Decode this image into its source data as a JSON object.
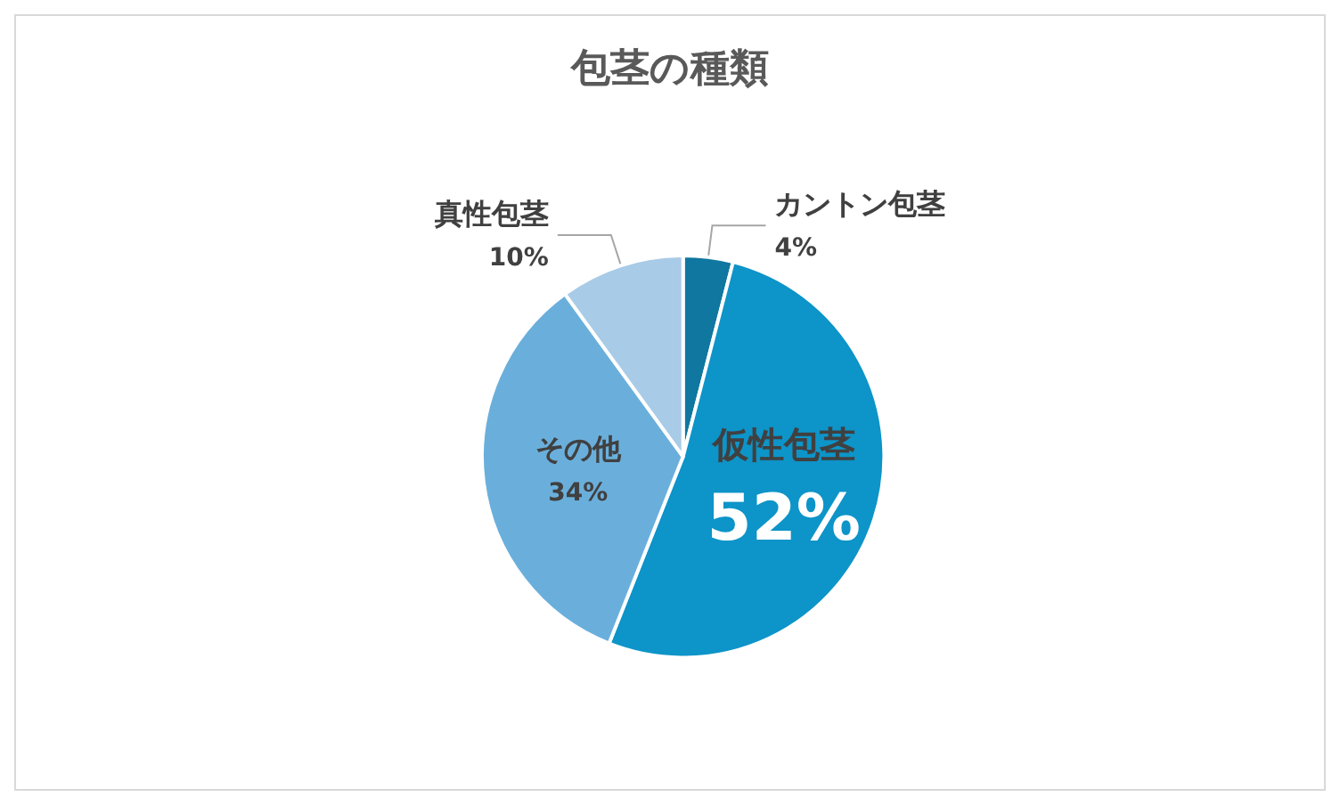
{
  "chart_data": {
    "type": "pie",
    "title": "包茎の種類",
    "categories": [
      "カントン包茎",
      "仮性包茎",
      "その他",
      "真性包茎"
    ],
    "values": [
      4,
      52,
      34,
      10
    ],
    "value_labels": [
      "4%",
      "52%",
      "34%",
      "10%"
    ],
    "colors": [
      "#0f77a0",
      "#0d94c8",
      "#6aafdc",
      "#a8cbe7"
    ],
    "legend": false
  }
}
